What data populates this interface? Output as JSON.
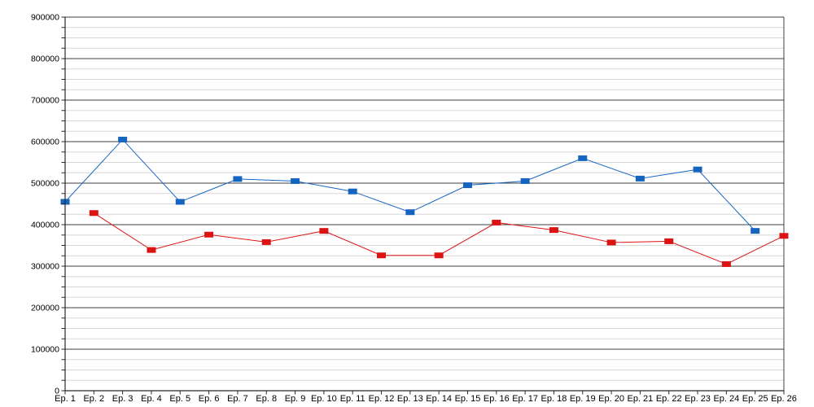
{
  "chart_data": {
    "type": "line",
    "title": "",
    "xlabel": "",
    "ylabel": "",
    "legend_position": "none",
    "x_axis": {
      "categories": [
        "Ep. 1",
        "Ep. 2",
        "Ep. 3",
        "Ep. 4",
        "Ep. 5",
        "Ep. 6",
        "Ep. 7",
        "Ep. 8",
        "Ep. 9",
        "Ep. 10",
        "Ep. 11",
        "Ep. 12",
        "Ep. 13",
        "Ep. 14",
        "Ep. 15",
        "Ep. 16",
        "Ep. 17",
        "Ep. 18",
        "Ep. 19",
        "Ep. 20",
        "Ep. 21",
        "Ep. 22",
        "Ep. 23",
        "Ep. 24",
        "Ep. 25",
        "Ep. 26"
      ]
    },
    "y_axis": {
      "min": 0,
      "max": 900000,
      "major_step": 100000,
      "minor_step": 25000,
      "tick_labels": [
        "0",
        "100000",
        "200000",
        "300000",
        "400000",
        "500000",
        "600000",
        "700000",
        "800000",
        "900000"
      ]
    },
    "grid": {
      "major": true,
      "minor": true
    },
    "series": [
      {
        "name": "blue-series",
        "color": "#1565c0",
        "marker": "rect",
        "points": [
          {
            "episode": 1,
            "value": 455000
          },
          {
            "episode": 3,
            "value": 605000
          },
          {
            "episode": 5,
            "value": 455000
          },
          {
            "episode": 7,
            "value": 510000
          },
          {
            "episode": 9,
            "value": 505000
          },
          {
            "episode": 11,
            "value": 480000
          },
          {
            "episode": 13,
            "value": 430000
          },
          {
            "episode": 15,
            "value": 495000
          },
          {
            "episode": 17,
            "value": 505000
          },
          {
            "episode": 19,
            "value": 560000
          },
          {
            "episode": 21,
            "value": 511000
          },
          {
            "episode": 23,
            "value": 533000
          },
          {
            "episode": 25,
            "value": 385000
          }
        ]
      },
      {
        "name": "red-series",
        "color": "#dc1313",
        "marker": "rect",
        "points": [
          {
            "episode": 2,
            "value": 428000
          },
          {
            "episode": 4,
            "value": 339000
          },
          {
            "episode": 6,
            "value": 376000
          },
          {
            "episode": 8,
            "value": 358000
          },
          {
            "episode": 10,
            "value": 385000
          },
          {
            "episode": 12,
            "value": 326000
          },
          {
            "episode": 14,
            "value": 326000
          },
          {
            "episode": 16,
            "value": 405000
          },
          {
            "episode": 18,
            "value": 387000
          },
          {
            "episode": 20,
            "value": 357000
          },
          {
            "episode": 22,
            "value": 360000
          },
          {
            "episode": 24,
            "value": 305000
          },
          {
            "episode": 26,
            "value": 373000
          }
        ]
      }
    ],
    "colors": {
      "background": "#ffffff",
      "major_grid": "#3f3f3f",
      "minor_grid": "#d8d8d8",
      "axis": "#2a2a2a",
      "label": "#000000"
    }
  }
}
